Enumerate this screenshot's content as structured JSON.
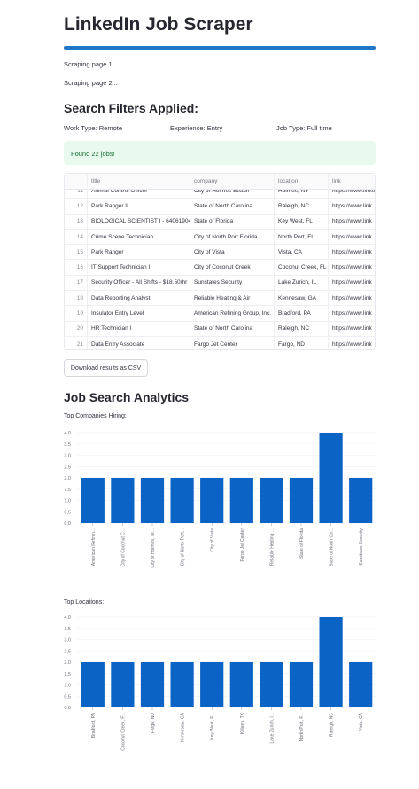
{
  "header": {
    "title": "LinkedIn Job Scraper",
    "progress": 1.0
  },
  "status": [
    "Scraping page 1...",
    "Scraping page 2..."
  ],
  "filters": {
    "heading": "Search Filters Applied:",
    "work_type": "Work Type: Remote",
    "experience": "Experience: Entry",
    "job_type": "Job Type: Full time"
  },
  "success_message": "Found 22 jobs!",
  "table": {
    "columns": [
      "title",
      "company",
      "location",
      "link"
    ],
    "rows": [
      {
        "idx": "11",
        "title": "Animal Control Officer",
        "company": "City of Holmes Beach",
        "location": "Holmes, NY",
        "link": "https://www.linkedin.com"
      },
      {
        "idx": "12",
        "title": "Park Ranger II",
        "company": "State of North Carolina",
        "location": "Raleigh, NC",
        "link": "https://www.link"
      },
      {
        "idx": "13",
        "title": "BIOLOGICAL SCIENTIST I - 64061904",
        "company": "State of Florida",
        "location": "Key West, FL",
        "link": "https://www.link"
      },
      {
        "idx": "14",
        "title": "Crime Scene Technician",
        "company": "City of North Port Florida",
        "location": "North Port, FL",
        "link": "https://www.link"
      },
      {
        "idx": "15",
        "title": "Park Ranger",
        "company": "City of Vista",
        "location": "Vista, CA",
        "link": "https://www.link"
      },
      {
        "idx": "16",
        "title": "IT Support Technician I",
        "company": "City of Coconut Creek",
        "location": "Coconut Creek, FL",
        "link": "https://www.link"
      },
      {
        "idx": "17",
        "title": "Security Officer - All Shifts - $18.50/hr",
        "company": "Sunstates Security",
        "location": "Lake Zurich, IL",
        "link": "https://www.link"
      },
      {
        "idx": "18",
        "title": "Data Reporting Analyst",
        "company": "Reliable Heating & Air",
        "location": "Kennesaw, GA",
        "link": "https://www.link"
      },
      {
        "idx": "19",
        "title": "Insulator Entry Level",
        "company": "American Refining Group, Inc.",
        "location": "Bradford, PA",
        "link": "https://www.link"
      },
      {
        "idx": "20",
        "title": "HR Technician I",
        "company": "State of North Carolina",
        "location": "Raleigh, NC",
        "link": "https://www.link"
      },
      {
        "idx": "21",
        "title": "Data Entry Associate",
        "company": "Fargo Jet Center",
        "location": "Fargo, ND",
        "link": "https://www.link"
      }
    ]
  },
  "download_button": "Download results as CSV",
  "analytics_heading": "Job Search Analytics",
  "chart_data": [
    {
      "type": "bar",
      "title": "Top Companies Hiring:",
      "categories": [
        "American Refinin...",
        "City of Coconut C...",
        "City of Holmes, Te...",
        "City of North Port...",
        "City of Vista",
        "Fargo Jet Center",
        "Reliable Heating ...",
        "State of Florida",
        "State of North Ca...",
        "Sunstates Security"
      ],
      "values": [
        2,
        2,
        2,
        2,
        2,
        2,
        2,
        2,
        4,
        2
      ],
      "ylim": [
        0,
        4
      ],
      "yticks": [
        "0.0",
        "0.5",
        "1.0",
        "1.5",
        "2.0",
        "2.5",
        "3.0",
        "3.5",
        "4.0"
      ],
      "color": "#0b63c5",
      "grid": true
    },
    {
      "type": "bar",
      "title": "Top Locations:",
      "categories": [
        "Bradford, PA",
        "Coconut Creek, F...",
        "Fargo, ND",
        "Kennesaw, GA",
        "Key West, F...",
        "Killeen, TX",
        "Lake Zurich, I...",
        "North Port, F...",
        "Raleigh, NC",
        "Vista, CA"
      ],
      "values": [
        2,
        2,
        2,
        2,
        2,
        2,
        2,
        2,
        4,
        2
      ],
      "ylim": [
        0,
        4
      ],
      "yticks": [
        "0.0",
        "0.5",
        "1.0",
        "1.5",
        "2.0",
        "2.5",
        "3.0",
        "3.5",
        "4.0"
      ],
      "color": "#0b63c5",
      "grid": true
    }
  ]
}
